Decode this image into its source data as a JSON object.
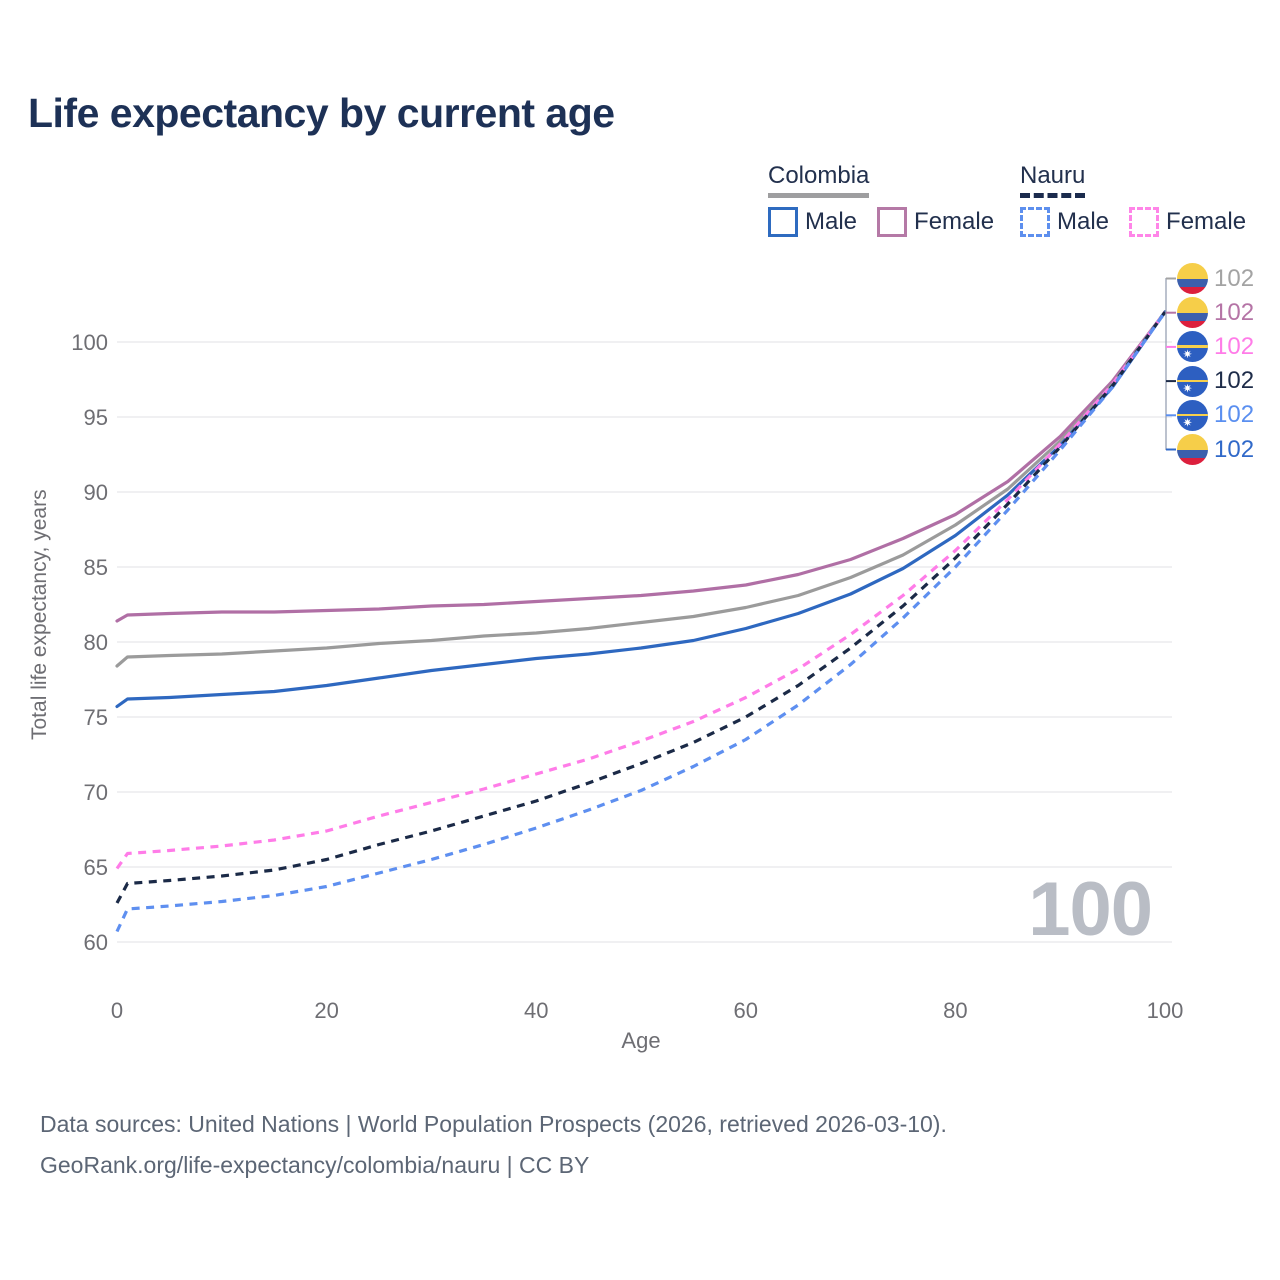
{
  "title": "Life expectancy by current age",
  "legend": {
    "colombia": {
      "country": "Colombia",
      "male_label": "Male",
      "female_label": "Female",
      "male_color": "#2E6BC0",
      "female_color": "#B579A6",
      "line_style": "solid"
    },
    "nauru": {
      "country": "Nauru",
      "male_label": "Male",
      "female_label": "Female",
      "male_color": "#5D8FEE",
      "female_color": "#FF85E8",
      "line_style": "dashed"
    }
  },
  "chart_data": {
    "type": "line",
    "title": "Life expectancy by current age",
    "xlabel": "Age",
    "ylabel": "Total life expectancy, years",
    "xlim": [
      0,
      100
    ],
    "ylim": [
      59,
      103
    ],
    "x_ticks": [
      0,
      20,
      40,
      60,
      80,
      100
    ],
    "y_ticks": [
      60,
      65,
      70,
      75,
      80,
      85,
      90,
      95,
      100
    ],
    "grid": "horizontal",
    "legend_position": "top-right",
    "x": [
      0,
      1,
      5,
      10,
      15,
      20,
      25,
      30,
      35,
      40,
      45,
      50,
      55,
      60,
      65,
      70,
      75,
      80,
      85,
      90,
      95,
      100
    ],
    "series": [
      {
        "name": "Colombia Female",
        "color": "#B06FA5",
        "dashed": false,
        "values": [
          81.4,
          81.8,
          81.9,
          82.0,
          82.0,
          82.1,
          82.2,
          82.4,
          82.5,
          82.7,
          82.9,
          83.1,
          83.4,
          83.8,
          84.5,
          85.5,
          86.9,
          88.5,
          90.7,
          93.7,
          97.4,
          102
        ]
      },
      {
        "name": "Colombia Both sexes",
        "color": "#9B9B9B",
        "dashed": false,
        "values": [
          78.4,
          79.0,
          79.1,
          79.2,
          79.4,
          79.6,
          79.9,
          80.1,
          80.4,
          80.6,
          80.9,
          81.3,
          81.7,
          82.3,
          83.1,
          84.3,
          85.8,
          87.8,
          90.2,
          93.4,
          97.2,
          102
        ]
      },
      {
        "name": "Colombia Male",
        "color": "#2E68C0",
        "dashed": false,
        "values": [
          75.7,
          76.2,
          76.3,
          76.5,
          76.7,
          77.1,
          77.6,
          78.1,
          78.5,
          78.9,
          79.2,
          79.6,
          80.1,
          80.9,
          81.9,
          83.2,
          84.9,
          87.1,
          89.8,
          93.1,
          97.0,
          102
        ]
      },
      {
        "name": "Nauru Female",
        "color": "#FF7CE8",
        "dashed": true,
        "values": [
          64.9,
          65.9,
          66.1,
          66.4,
          66.8,
          67.4,
          68.4,
          69.3,
          70.2,
          71.2,
          72.2,
          73.4,
          74.7,
          76.3,
          78.2,
          80.5,
          83.1,
          86.1,
          89.5,
          93.2,
          97.2,
          102
        ]
      },
      {
        "name": "Nauru Both sexes",
        "color": "#1B2A47",
        "dashed": true,
        "values": [
          62.6,
          63.9,
          64.1,
          64.4,
          64.8,
          65.5,
          66.5,
          67.4,
          68.4,
          69.4,
          70.6,
          71.9,
          73.3,
          75.0,
          77.1,
          79.6,
          82.4,
          85.6,
          89.2,
          93.0,
          97.1,
          102
        ]
      },
      {
        "name": "Nauru Male",
        "color": "#5E8FF0",
        "dashed": true,
        "values": [
          60.7,
          62.2,
          62.4,
          62.7,
          63.1,
          63.7,
          64.6,
          65.5,
          66.5,
          67.6,
          68.8,
          70.1,
          71.7,
          73.5,
          75.8,
          78.5,
          81.6,
          85.0,
          88.8,
          92.8,
          97.0,
          102
        ]
      }
    ],
    "end_labels": [
      {
        "flag": "colombia",
        "value": "102",
        "color": "#A3A3A3",
        "series": "Colombia Both sexes"
      },
      {
        "flag": "colombia",
        "value": "102",
        "color": "#B574A6",
        "series": "Colombia Female"
      },
      {
        "flag": "nauru",
        "value": "102",
        "color": "#FF7CE8",
        "series": "Nauru Female"
      },
      {
        "flag": "nauru",
        "value": "102",
        "color": "#1E2C49",
        "series": "Nauru Both sexes"
      },
      {
        "flag": "nauru",
        "value": "102",
        "color": "#5A8FF0",
        "series": "Nauru Male"
      },
      {
        "flag": "colombia",
        "value": "102",
        "color": "#3069C9",
        "series": "Colombia Male"
      }
    ],
    "watermark": "100"
  },
  "footer": {
    "line1": "Data sources: United Nations | World Population Prospects (2026, retrieved 2026-03-10).",
    "line2": "GeoRank.org/life-expectancy/colombia/nauru | CC BY"
  }
}
